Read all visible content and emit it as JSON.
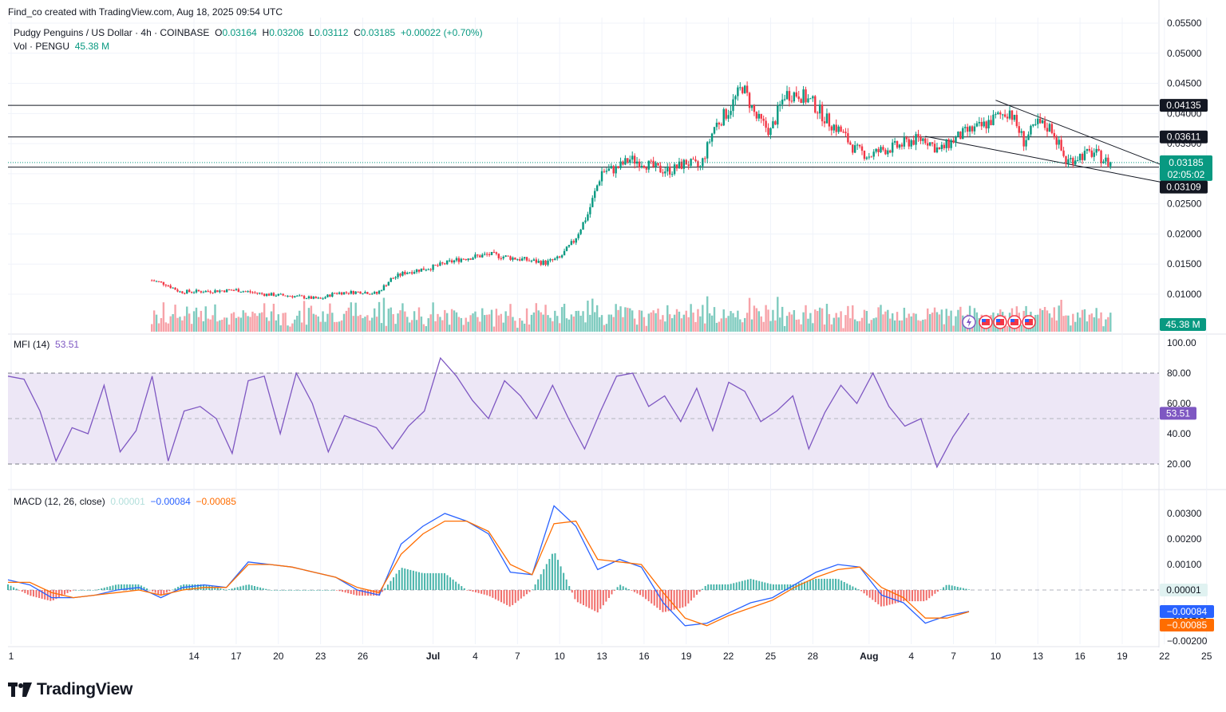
{
  "attribution": "Find_co created with TradingView.com, Aug 18, 2025 09:54 UTC",
  "symbol": {
    "title": "Pudgy Penguins / US Dollar · 4h · COINBASE",
    "open_label": "O",
    "open": "0.03164",
    "high_label": "H",
    "high": "0.03206",
    "low_label": "L",
    "low": "0.03112",
    "close_label": "C",
    "close": "0.03185",
    "change": "+0.00022 (+0.70%)"
  },
  "volume": {
    "label": "Vol · PENGU",
    "value": "45.38 M",
    "badge": "45.38 M"
  },
  "price_badges": {
    "last": "0.03185",
    "countdown": "02:05:02",
    "line1": "0.04135",
    "line2": "0.03611",
    "line3": "0.03109"
  },
  "mfi": {
    "label": "MFI (14)",
    "value": "53.51",
    "badge": "53.51"
  },
  "macd": {
    "label": "MACD (12, 26, close)",
    "hist": "0.00001",
    "macd": "−0.00084",
    "signal": "−0.00085",
    "badge_hist": "0.00001",
    "badge_macd": "−0.00084",
    "badge_signal": "−0.00085"
  },
  "logo_text": "TradingView",
  "colors": {
    "up": "#089981",
    "down": "#f23645",
    "vol_up": "#7fcbbf",
    "vol_down": "#f7a2a8",
    "mfi": "#7e57c2",
    "mfi_band": "#ede7f6",
    "macd": "#2962ff",
    "signal": "#ff6d00",
    "hist_up": "#26a69a",
    "hist_down": "#ef5350"
  },
  "chart_data": [
    {
      "type": "candlestick",
      "pane": "price",
      "yticks": [
        "0.05500",
        "0.05000",
        "0.04500",
        "0.04000",
        "0.03500",
        "0.03000",
        "0.02500",
        "0.02000",
        "0.01500",
        "0.01000"
      ],
      "ylim": [
        0.0,
        0.055
      ],
      "xticks": [
        "1",
        "14",
        "17",
        "20",
        "23",
        "26",
        "Jul",
        "4",
        "7",
        "10",
        "13",
        "16",
        "19",
        "22",
        "25",
        "28",
        "Aug",
        "4",
        "7",
        "10",
        "13",
        "16",
        "19",
        "22",
        "25",
        "28"
      ],
      "horizontal_levels": [
        0.04135,
        0.03611,
        0.03109
      ],
      "trendlines": [
        {
          "from": [
            "Aug 10",
            0.0422
          ],
          "to": [
            "Aug 22",
            0.0313
          ]
        },
        {
          "from": [
            "Aug 5",
            0.0362
          ],
          "to": [
            "Aug 22",
            0.0285
          ]
        }
      ],
      "close_path": [
        [
          "Jun 11",
          0.0123
        ],
        [
          "Jun 12",
          0.0117
        ],
        [
          "Jun 13",
          0.0104
        ],
        [
          "Jun 15",
          0.0105
        ],
        [
          "Jun 17",
          0.0107
        ],
        [
          "Jun 19",
          0.01
        ],
        [
          "Jun 21",
          0.0097
        ],
        [
          "Jun 23",
          0.0092
        ],
        [
          "Jun 24",
          0.0102
        ],
        [
          "Jun 26",
          0.0104
        ],
        [
          "Jun 27",
          0.0101
        ],
        [
          "Jun 28",
          0.0125
        ],
        [
          "Jun 29",
          0.0136
        ],
        [
          "Jul 1",
          0.0145
        ],
        [
          "Jul 3",
          0.0159
        ],
        [
          "Jul 5",
          0.0166
        ],
        [
          "Jul 7",
          0.0159
        ],
        [
          "Jul 9",
          0.0152
        ],
        [
          "Jul 10",
          0.016
        ],
        [
          "Jul 11",
          0.0188
        ],
        [
          "Jul 12",
          0.0233
        ],
        [
          "Jul 13",
          0.0304
        ],
        [
          "Jul 14",
          0.0308
        ],
        [
          "Jul 15",
          0.0324
        ],
        [
          "Jul 16",
          0.0318
        ],
        [
          "Jul 17",
          0.0307
        ],
        [
          "Jul 18",
          0.0306
        ],
        [
          "Jul 19",
          0.0319
        ],
        [
          "Jul 20",
          0.031
        ],
        [
          "Jul 21",
          0.0378
        ],
        [
          "Jul 22",
          0.0405
        ],
        [
          "Jul 23",
          0.0445
        ],
        [
          "Jul 24",
          0.0392
        ],
        [
          "Jul 25",
          0.037
        ],
        [
          "Jul 26",
          0.0432
        ],
        [
          "Jul 27",
          0.0433
        ],
        [
          "Jul 28",
          0.0417
        ],
        [
          "Jul 29",
          0.0389
        ],
        [
          "Jul 30",
          0.037
        ],
        [
          "Jul 31",
          0.034
        ],
        [
          "Aug 1",
          0.033
        ],
        [
          "Aug 2",
          0.034
        ],
        [
          "Aug 3",
          0.0345
        ],
        [
          "Aug 4",
          0.0355
        ],
        [
          "Aug 5",
          0.0358
        ],
        [
          "Aug 6",
          0.0338
        ],
        [
          "Aug 7",
          0.0356
        ],
        [
          "Aug 8",
          0.037
        ],
        [
          "Aug 9",
          0.0378
        ],
        [
          "Aug 10",
          0.0393
        ],
        [
          "Aug 11",
          0.0405
        ],
        [
          "Aug 12",
          0.0354
        ],
        [
          "Aug 13",
          0.0383
        ],
        [
          "Aug 14",
          0.0375
        ],
        [
          "Aug 15",
          0.032
        ],
        [
          "Aug 16",
          0.033
        ],
        [
          "Aug 17",
          0.0335
        ],
        [
          "Aug 18",
          0.0318
        ]
      ],
      "last_close": 0.03185
    },
    {
      "type": "bar",
      "pane": "volume",
      "series": [
        {
          "name": "Vol · PENGU",
          "last": "45.38 M"
        }
      ]
    },
    {
      "type": "line",
      "pane": "mfi",
      "yticks": [
        "100.00",
        "80.00",
        "60.00",
        "40.00",
        "20.00"
      ],
      "ylim": [
        0,
        100
      ],
      "band": [
        20,
        80
      ],
      "midline": 50,
      "series": [
        {
          "name": "MFI (14)",
          "values": [
            78,
            76,
            55,
            22,
            44,
            40,
            72,
            28,
            42,
            78,
            22,
            55,
            58,
            50,
            27,
            75,
            78,
            40,
            80,
            60,
            28,
            52,
            48,
            44,
            30,
            45,
            55,
            90,
            78,
            62,
            50,
            75,
            65,
            50,
            72,
            50,
            30,
            55,
            78,
            80,
            58,
            65,
            48,
            70,
            42,
            74,
            68,
            48,
            55,
            65,
            30,
            54,
            72,
            60,
            80,
            58,
            45,
            50,
            18,
            38,
            53.51
          ]
        }
      ]
    },
    {
      "type": "line",
      "pane": "macd",
      "yticks": [
        "0.00300",
        "0.00200",
        "0.00100",
        "0.00000",
        "−0.00100",
        "−0.00200"
      ],
      "ylim": [
        -0.0022,
        0.0034
      ],
      "series": [
        {
          "name": "MACD",
          "values": [
            0.0004,
            0.0002,
            -0.0003,
            -0.0003,
            -0.0002,
            0.0,
            0.0001,
            -0.0003,
            0.0001,
            0.0002,
            0.0001,
            0.0011,
            0.001,
            0.0009,
            0.0007,
            0.0005,
            0.0,
            -0.0002,
            0.0018,
            0.0025,
            0.003,
            0.0027,
            0.0022,
            0.0007,
            0.0006,
            0.0033,
            0.0025,
            0.0008,
            0.0012,
            0.0009,
            -0.0005,
            -0.0014,
            -0.0013,
            -0.0009,
            -0.0005,
            -0.0003,
            0.0002,
            0.0007,
            0.001,
            0.0009,
            -0.0002,
            -0.0005,
            -0.0013,
            -0.001,
            -0.00084
          ]
        },
        {
          "name": "Signal",
          "values": [
            0.0003,
            0.0003,
            -0.0001,
            -0.0003,
            -0.0002,
            -0.0001,
            0.0,
            -0.0002,
            0.0,
            0.0001,
            0.0001,
            0.001,
            0.001,
            0.0009,
            0.0007,
            0.0005,
            0.0001,
            -0.0001,
            0.0014,
            0.0022,
            0.0027,
            0.0027,
            0.0023,
            0.001,
            0.0006,
            0.0026,
            0.0027,
            0.0012,
            0.0011,
            0.001,
            -0.0001,
            -0.0011,
            -0.0014,
            -0.001,
            -0.0007,
            -0.0004,
            0.0001,
            0.0005,
            0.0008,
            0.0009,
            0.0001,
            -0.0003,
            -0.0011,
            -0.0011,
            -0.00085
          ]
        }
      ]
    }
  ]
}
